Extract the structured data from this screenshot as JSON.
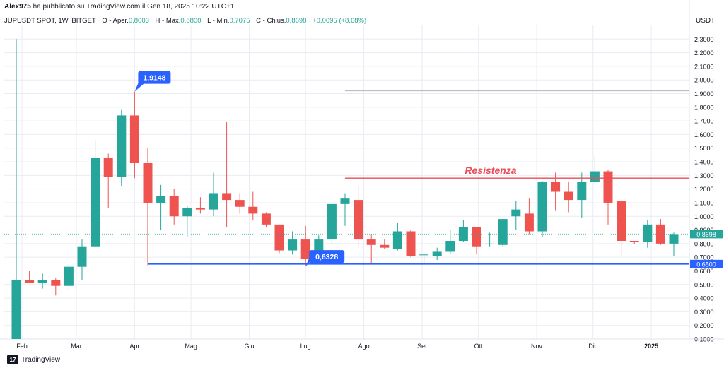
{
  "header": {
    "author": "Alex975",
    "published_text": "ha pubblicato su TradingView.com il Gen 18, 2025 10:22 UTC+1"
  },
  "legend": {
    "symbol": "JUPUSDT SPOT, 1W, BITGET",
    "open_label": "O - Aper.",
    "open_value": "0,8003",
    "high_label": "H - Max.",
    "high_value": "0,8800",
    "low_label": "L - Min.",
    "low_value": "0,7075",
    "close_label": "C - Chius.",
    "close_value": "0,8698",
    "change_value": "+0,0695 (+8,68%)"
  },
  "currency_label": "USDT",
  "footer": {
    "logo_text": "17",
    "brand": "TradingView"
  },
  "colors": {
    "up": "#26a69a",
    "down": "#ef5350",
    "resistance": "#e84e58",
    "support": "#2962ff",
    "grid": "#e9ecf2"
  },
  "chart_data": {
    "type": "candlestick",
    "y_unit": "USDT",
    "ylim": [
      0.1,
      2.4
    ],
    "y_ticks": [
      "0,1000",
      "0,2000",
      "0,3000",
      "0,4000",
      "0,5000",
      "0,6000",
      "0,7000",
      "0,8000",
      "0,9000",
      "1,0000",
      "1,1000",
      "1,2000",
      "1,3000",
      "1,4000",
      "1,5000",
      "1,6000",
      "1,7000",
      "1,8000",
      "1,9000",
      "2,0000",
      "2,1000",
      "2,2000",
      "2,3000"
    ],
    "x_ticks": [
      "Feb",
      "Mar",
      "Apr",
      "Mag",
      "Giu",
      "Lug",
      "Ago",
      "Set",
      "Ott",
      "Nov",
      "Dic",
      "2025"
    ],
    "last_price": {
      "value": 0.8698,
      "label": "0,8698"
    },
    "support": {
      "value": 0.65,
      "label": "0,6500"
    },
    "resistance": {
      "value": 1.28,
      "label": "Resistenza"
    },
    "high_marker": {
      "value": 1.9148,
      "label": "1,9148"
    },
    "low_marker": {
      "value": 0.6328,
      "label": "0,6328"
    },
    "faint_level": {
      "value": 1.92
    },
    "candles": [
      {
        "date": "2024-01-29",
        "o": 0.1,
        "h": 2.3,
        "l": 0.1,
        "c": 0.53
      },
      {
        "date": "2024-02-05",
        "o": 0.53,
        "h": 0.6,
        "l": 0.51,
        "c": 0.51
      },
      {
        "date": "2024-02-12",
        "o": 0.51,
        "h": 0.58,
        "l": 0.47,
        "c": 0.53
      },
      {
        "date": "2024-02-19",
        "o": 0.53,
        "h": 0.55,
        "l": 0.42,
        "c": 0.49
      },
      {
        "date": "2024-02-26",
        "o": 0.49,
        "h": 0.65,
        "l": 0.46,
        "c": 0.63
      },
      {
        "date": "2024-03-04",
        "o": 0.63,
        "h": 0.83,
        "l": 0.53,
        "c": 0.78
      },
      {
        "date": "2024-03-11",
        "o": 0.78,
        "h": 1.56,
        "l": 0.78,
        "c": 1.43
      },
      {
        "date": "2024-03-18",
        "o": 1.43,
        "h": 1.46,
        "l": 1.06,
        "c": 1.29
      },
      {
        "date": "2024-03-25",
        "o": 1.29,
        "h": 1.78,
        "l": 1.22,
        "c": 1.74
      },
      {
        "date": "2024-04-01",
        "o": 1.74,
        "h": 1.9148,
        "l": 1.28,
        "c": 1.39
      },
      {
        "date": "2024-04-08",
        "o": 1.39,
        "h": 1.5,
        "l": 0.64,
        "c": 1.1
      },
      {
        "date": "2024-04-15",
        "o": 1.1,
        "h": 1.23,
        "l": 0.9,
        "c": 1.15
      },
      {
        "date": "2024-04-22",
        "o": 1.15,
        "h": 1.2,
        "l": 0.94,
        "c": 1.0
      },
      {
        "date": "2024-04-29",
        "o": 1.0,
        "h": 1.08,
        "l": 0.85,
        "c": 1.06
      },
      {
        "date": "2024-05-06",
        "o": 1.06,
        "h": 1.14,
        "l": 1.02,
        "c": 1.05
      },
      {
        "date": "2024-05-13",
        "o": 1.05,
        "h": 1.32,
        "l": 1.0,
        "c": 1.17
      },
      {
        "date": "2024-05-20",
        "o": 1.17,
        "h": 1.69,
        "l": 0.92,
        "c": 1.12
      },
      {
        "date": "2024-05-27",
        "o": 1.12,
        "h": 1.17,
        "l": 1.02,
        "c": 1.07
      },
      {
        "date": "2024-06-03",
        "o": 1.07,
        "h": 1.18,
        "l": 0.97,
        "c": 1.02
      },
      {
        "date": "2024-06-10",
        "o": 1.02,
        "h": 1.03,
        "l": 0.92,
        "c": 0.94
      },
      {
        "date": "2024-06-17",
        "o": 0.94,
        "h": 0.94,
        "l": 0.73,
        "c": 0.75
      },
      {
        "date": "2024-06-24",
        "o": 0.75,
        "h": 0.89,
        "l": 0.72,
        "c": 0.83
      },
      {
        "date": "2024-07-01",
        "o": 0.83,
        "h": 0.93,
        "l": 0.6328,
        "c": 0.69
      },
      {
        "date": "2024-07-08",
        "o": 0.69,
        "h": 0.86,
        "l": 0.66,
        "c": 0.83
      },
      {
        "date": "2024-07-15",
        "o": 0.83,
        "h": 1.1,
        "l": 0.8,
        "c": 1.09
      },
      {
        "date": "2024-07-22",
        "o": 1.09,
        "h": 1.17,
        "l": 0.93,
        "c": 1.13
      },
      {
        "date": "2024-07-29",
        "o": 1.12,
        "h": 1.22,
        "l": 0.76,
        "c": 0.83
      },
      {
        "date": "2024-08-05",
        "o": 0.83,
        "h": 0.87,
        "l": 0.65,
        "c": 0.79
      },
      {
        "date": "2024-08-12",
        "o": 0.79,
        "h": 0.83,
        "l": 0.76,
        "c": 0.77
      },
      {
        "date": "2024-08-19",
        "o": 0.76,
        "h": 0.95,
        "l": 0.75,
        "c": 0.89
      },
      {
        "date": "2024-08-26",
        "o": 0.89,
        "h": 0.9,
        "l": 0.7,
        "c": 0.71
      },
      {
        "date": "2024-09-02",
        "o": 0.72,
        "h": 0.73,
        "l": 0.66,
        "c": 0.72
      },
      {
        "date": "2024-09-09",
        "o": 0.71,
        "h": 0.77,
        "l": 0.68,
        "c": 0.74
      },
      {
        "date": "2024-09-16",
        "o": 0.74,
        "h": 0.9,
        "l": 0.72,
        "c": 0.82
      },
      {
        "date": "2024-09-23",
        "o": 0.82,
        "h": 0.97,
        "l": 0.81,
        "c": 0.92
      },
      {
        "date": "2024-09-30",
        "o": 0.92,
        "h": 0.92,
        "l": 0.72,
        "c": 0.78
      },
      {
        "date": "2024-10-07",
        "o": 0.8,
        "h": 0.88,
        "l": 0.78,
        "c": 0.8
      },
      {
        "date": "2024-10-14",
        "o": 0.79,
        "h": 0.98,
        "l": 0.78,
        "c": 0.98
      },
      {
        "date": "2024-10-21",
        "o": 1.0,
        "h": 1.11,
        "l": 0.9,
        "c": 1.05
      },
      {
        "date": "2024-10-28",
        "o": 1.02,
        "h": 1.13,
        "l": 0.87,
        "c": 0.89
      },
      {
        "date": "2024-11-04",
        "o": 0.89,
        "h": 1.26,
        "l": 0.85,
        "c": 1.25
      },
      {
        "date": "2024-11-11",
        "o": 1.25,
        "h": 1.32,
        "l": 1.04,
        "c": 1.18
      },
      {
        "date": "2024-11-18",
        "o": 1.18,
        "h": 1.25,
        "l": 1.03,
        "c": 1.12
      },
      {
        "date": "2024-11-25",
        "o": 1.12,
        "h": 1.32,
        "l": 0.99,
        "c": 1.25
      },
      {
        "date": "2024-12-02",
        "o": 1.25,
        "h": 1.44,
        "l": 1.24,
        "c": 1.33
      },
      {
        "date": "2024-12-09",
        "o": 1.33,
        "h": 1.34,
        "l": 0.94,
        "c": 1.1
      },
      {
        "date": "2024-12-16",
        "o": 1.11,
        "h": 1.12,
        "l": 0.71,
        "c": 0.82
      },
      {
        "date": "2024-12-23",
        "o": 0.82,
        "h": 0.82,
        "l": 0.8,
        "c": 0.81
      },
      {
        "date": "2024-12-30",
        "o": 0.81,
        "h": 0.97,
        "l": 0.77,
        "c": 0.94
      },
      {
        "date": "2025-01-06",
        "o": 0.94,
        "h": 0.98,
        "l": 0.79,
        "c": 0.8
      },
      {
        "date": "2025-01-13",
        "o": 0.8,
        "h": 0.88,
        "l": 0.71,
        "c": 0.87
      }
    ]
  }
}
